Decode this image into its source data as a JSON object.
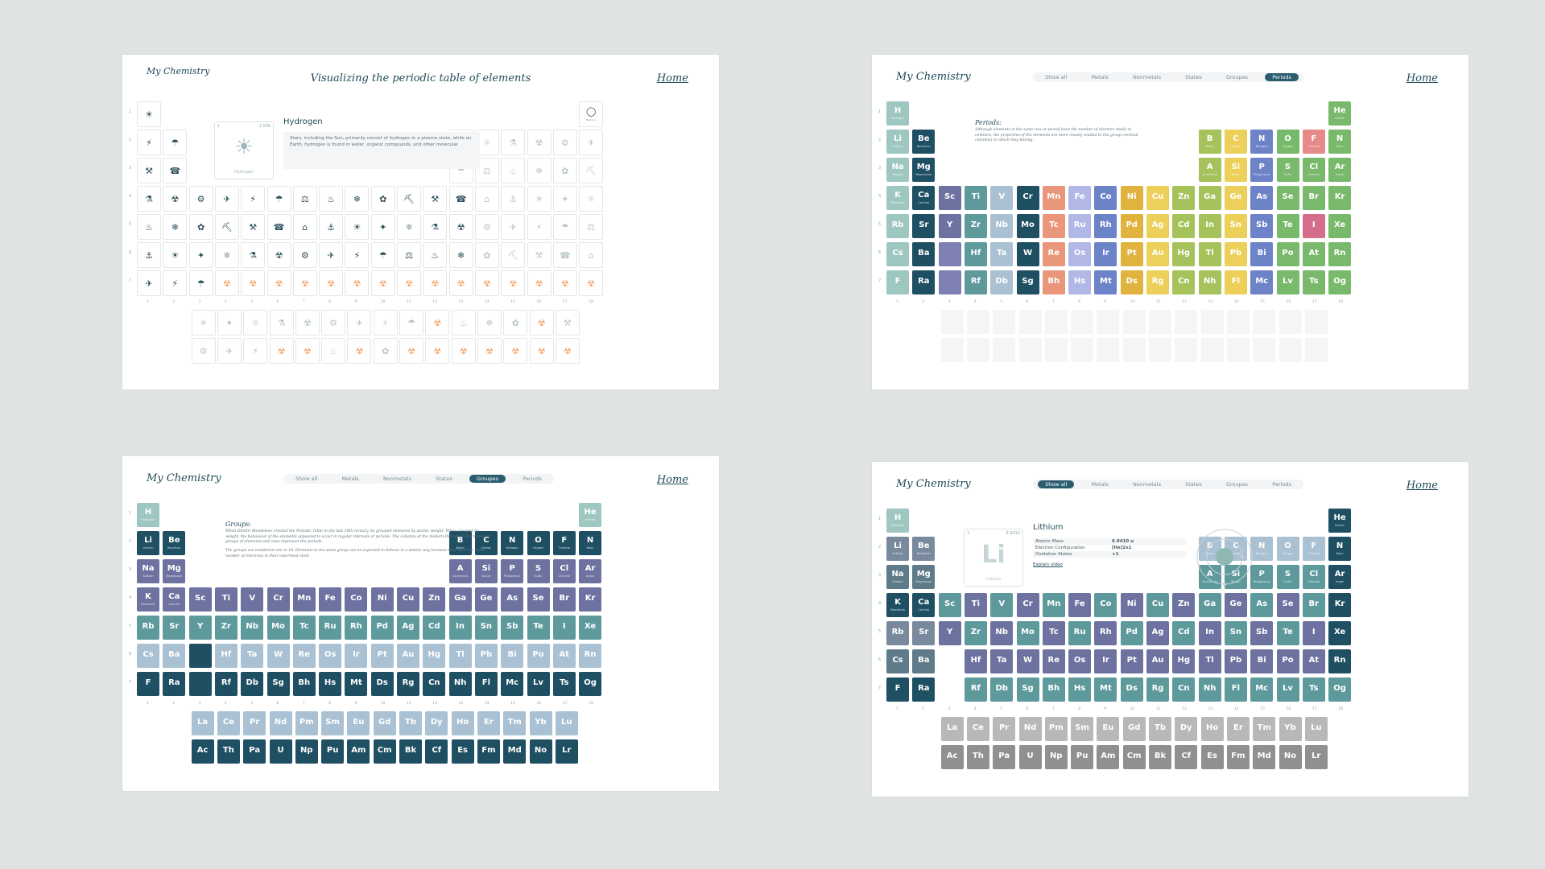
{
  "brand": "My Chemistry",
  "home_link": "Home",
  "nav_tabs": [
    "Show all",
    "Metals",
    "Nonmetals",
    "States",
    "Groupes",
    "Periods"
  ],
  "row_numbers": [
    "1",
    "2",
    "3",
    "4",
    "5",
    "6",
    "7"
  ],
  "col_numbers": [
    "1",
    "2",
    "3",
    "4",
    "5",
    "6",
    "7",
    "8",
    "9",
    "10",
    "11",
    "12",
    "13",
    "14",
    "15",
    "16",
    "17",
    "18"
  ],
  "panel1": {
    "title": "Visualizing the periodic table of elements",
    "element_number": "1",
    "element_mass": "1.008",
    "element_symbol": "☀",
    "element_caption": "Hydrogen",
    "detail_title": "Hydrogen",
    "detail_text": "Stars, including the Sun, primarily consist of hydrogen in a plasma state, while on Earth, hydrogen is found in water, organic compounds, and other molecular",
    "he_label": "Balloons"
  },
  "panel2": {
    "active_tab": "Periods",
    "info_title": "Periods:",
    "info_text": "Although elements in the same row or period have the number of electron shells in common, the properties of the elements are more closely related to the group (vertical columns) to which they belong."
  },
  "panel3": {
    "active_tab": "Groupes",
    "info_title": "Groups:",
    "info_text_1": "When Dimitri Mendeleev created the Periodic Table in the late 19th century, he grouped elements by atomic weight. When grouped by weight, the behaviour of the elements appeared to occur in regular intervals or periods. The columns of the modern Periodic Table represent groups of elements and rows represent the periods.",
    "info_text_2": "The groups are numbered one to 18. Elements in the same group can be expected to behave in a similar way because they have the same number of electrons in their outermost shell."
  },
  "panel4": {
    "active_tab": "Show all",
    "element_number": "3",
    "element_mass": "6.9410",
    "element_symbol": "Li",
    "element_caption": "Lithium",
    "detail_title": "Lithium",
    "props": [
      {
        "label": "Atomic Mass",
        "value": "6.9410 u"
      },
      {
        "label": "Electron Configuration",
        "value": "[He]2s1"
      },
      {
        "label": "Oxidation States",
        "value": "+1"
      }
    ],
    "link": "Explain video"
  },
  "colors": {
    "dark": "#1f4f63",
    "teal": "#5e9a9c",
    "purple": "#6e72a0",
    "light_teal": "#9fc7c2",
    "light_blue": "#a9c1d2",
    "orange": "#e9967a",
    "lavender": "#b2b8e6",
    "blue": "#6d83c8",
    "mustard": "#e0b33f",
    "yellow": "#ecd05a",
    "green": "#79b96b",
    "olive": "#a5c25b",
    "gray": "#a7a9ab",
    "hazard": "#f1a36b"
  }
}
